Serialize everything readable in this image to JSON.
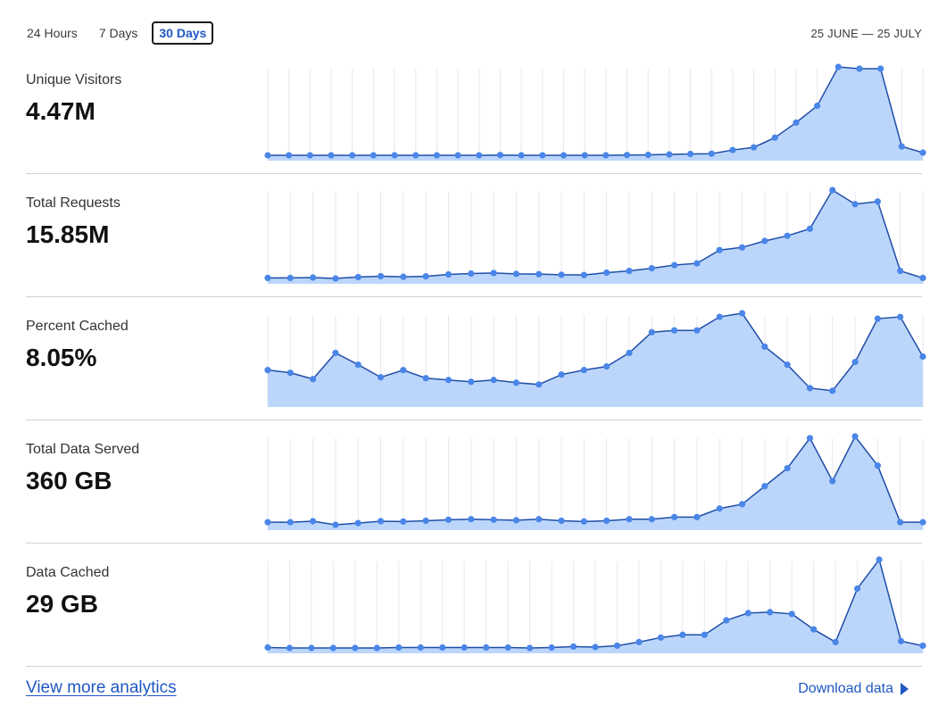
{
  "tabs": [
    {
      "label": "24 Hours",
      "active": false
    },
    {
      "label": "7 Days",
      "active": false
    },
    {
      "label": "30 Days",
      "active": true
    }
  ],
  "date_range": "25 JUNE — 25 JULY",
  "footer": {
    "view_more": "View more analytics",
    "download": "Download data"
  },
  "colors": {
    "line": "#1f4ea8",
    "point": "#4a86e8",
    "fill": "#bcd6fb",
    "grid": "#e6e9ef",
    "accent": "#1f57c3"
  },
  "chart_data": [
    {
      "type": "area",
      "title": "Unique Visitors",
      "value": "4.47M",
      "values": [
        0,
        0,
        0,
        0,
        0,
        0,
        0,
        0,
        0,
        0,
        0,
        0.3,
        0,
        0,
        0,
        0,
        0,
        0.3,
        0.5,
        1,
        1.5,
        1.8,
        6,
        9,
        20,
        37,
        56,
        100,
        98,
        98,
        10,
        3
      ]
    },
    {
      "type": "area",
      "title": "Total Requests",
      "value": "15.85M",
      "values": [
        0,
        0,
        0.4,
        -0.6,
        1,
        2,
        1.3,
        1.8,
        4,
        5,
        5.6,
        4.6,
        4.3,
        3.6,
        3.3,
        6,
        8,
        11,
        14.6,
        16.6,
        31.7,
        34.8,
        42.1,
        48,
        56,
        100,
        84,
        87,
        8,
        0
      ]
    },
    {
      "type": "area",
      "title": "Percent Cached",
      "value": "8.05%",
      "values": [
        35,
        32,
        25,
        54,
        41,
        27,
        35,
        26,
        24,
        22,
        24,
        21,
        19,
        30,
        35,
        39,
        54,
        77,
        79,
        79,
        94,
        98,
        61,
        41,
        15,
        12,
        44,
        92,
        94,
        50
      ]
    },
    {
      "type": "area",
      "title": "Total Data Served",
      "value": "360 GB",
      "values": [
        0,
        0,
        1.2,
        -3,
        -1,
        1.2,
        0.8,
        1.7,
        2.9,
        3.5,
        2.9,
        2.3,
        3.5,
        1.7,
        0.8,
        1.7,
        3.5,
        3.5,
        6,
        6,
        16,
        21,
        42,
        63,
        98,
        48,
        100,
        66,
        0,
        0
      ]
    },
    {
      "type": "area",
      "title": "Data Cached",
      "value": "29 GB",
      "values": [
        0,
        -0.5,
        -0.5,
        -0.5,
        -0.5,
        -0.5,
        0,
        0,
        0,
        0,
        0,
        0,
        -0.5,
        0,
        1,
        0.5,
        2,
        6,
        11,
        14,
        14,
        30,
        38,
        39,
        37,
        20,
        6,
        65,
        97,
        7,
        2
      ]
    }
  ]
}
